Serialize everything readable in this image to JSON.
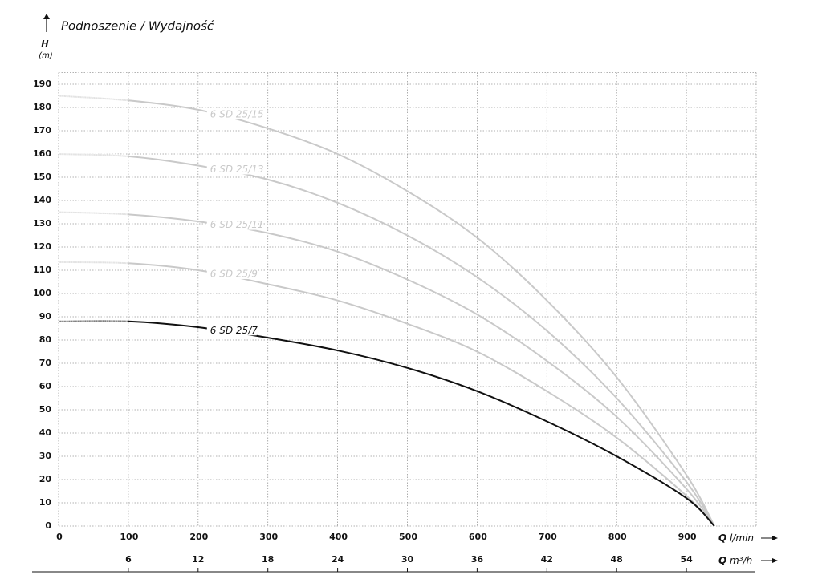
{
  "chart_data": {
    "type": "line",
    "title": "Podnoszenie / Wydajność",
    "y_label": {
      "symbol": "H",
      "unit": "(m)"
    },
    "x_label": {
      "symbol": "Q",
      "unit": "l/min"
    },
    "x2_label": {
      "symbol": "Q",
      "unit": "m³/h"
    },
    "x": [
      0,
      100,
      200,
      300,
      400,
      500,
      600,
      700,
      800,
      900,
      940
    ],
    "xlim": [
      0,
      1000
    ],
    "xticks": [
      0,
      100,
      200,
      300,
      400,
      500,
      600,
      700,
      800,
      900
    ],
    "x2lim": [
      0,
      60
    ],
    "x2ticks": [
      6,
      12,
      18,
      24,
      30,
      36,
      42,
      48,
      54
    ],
    "ylim": [
      0,
      195
    ],
    "yticks": [
      0,
      10,
      20,
      30,
      40,
      50,
      60,
      70,
      80,
      90,
      100,
      110,
      120,
      130,
      140,
      150,
      160,
      170,
      180,
      190
    ],
    "grid": true,
    "dashed_start": true,
    "series": [
      {
        "name": "6 SD 25/15",
        "color": "#c9c9c9",
        "values": [
          185,
          183,
          179,
          171,
          160,
          144,
          124,
          97,
          64,
          22,
          0
        ]
      },
      {
        "name": "6 SD 25/13",
        "color": "#c9c9c9",
        "values": [
          160,
          159,
          155,
          149,
          139,
          125,
          107,
          84,
          55,
          19,
          0
        ]
      },
      {
        "name": "6 SD 25/11",
        "color": "#c9c9c9",
        "values": [
          135,
          134,
          131,
          126,
          118,
          106,
          91,
          71,
          47,
          16,
          0
        ]
      },
      {
        "name": "6 SD 25/9",
        "color": "#c9c9c9",
        "values": [
          113.5,
          113,
          110,
          104,
          97,
          87,
          75,
          58,
          38,
          13,
          0
        ]
      },
      {
        "name": "6 SD 25/7",
        "color": "#111111",
        "values": [
          88,
          88,
          85.5,
          81,
          75.5,
          68,
          58,
          45,
          30,
          12,
          0
        ]
      }
    ]
  }
}
